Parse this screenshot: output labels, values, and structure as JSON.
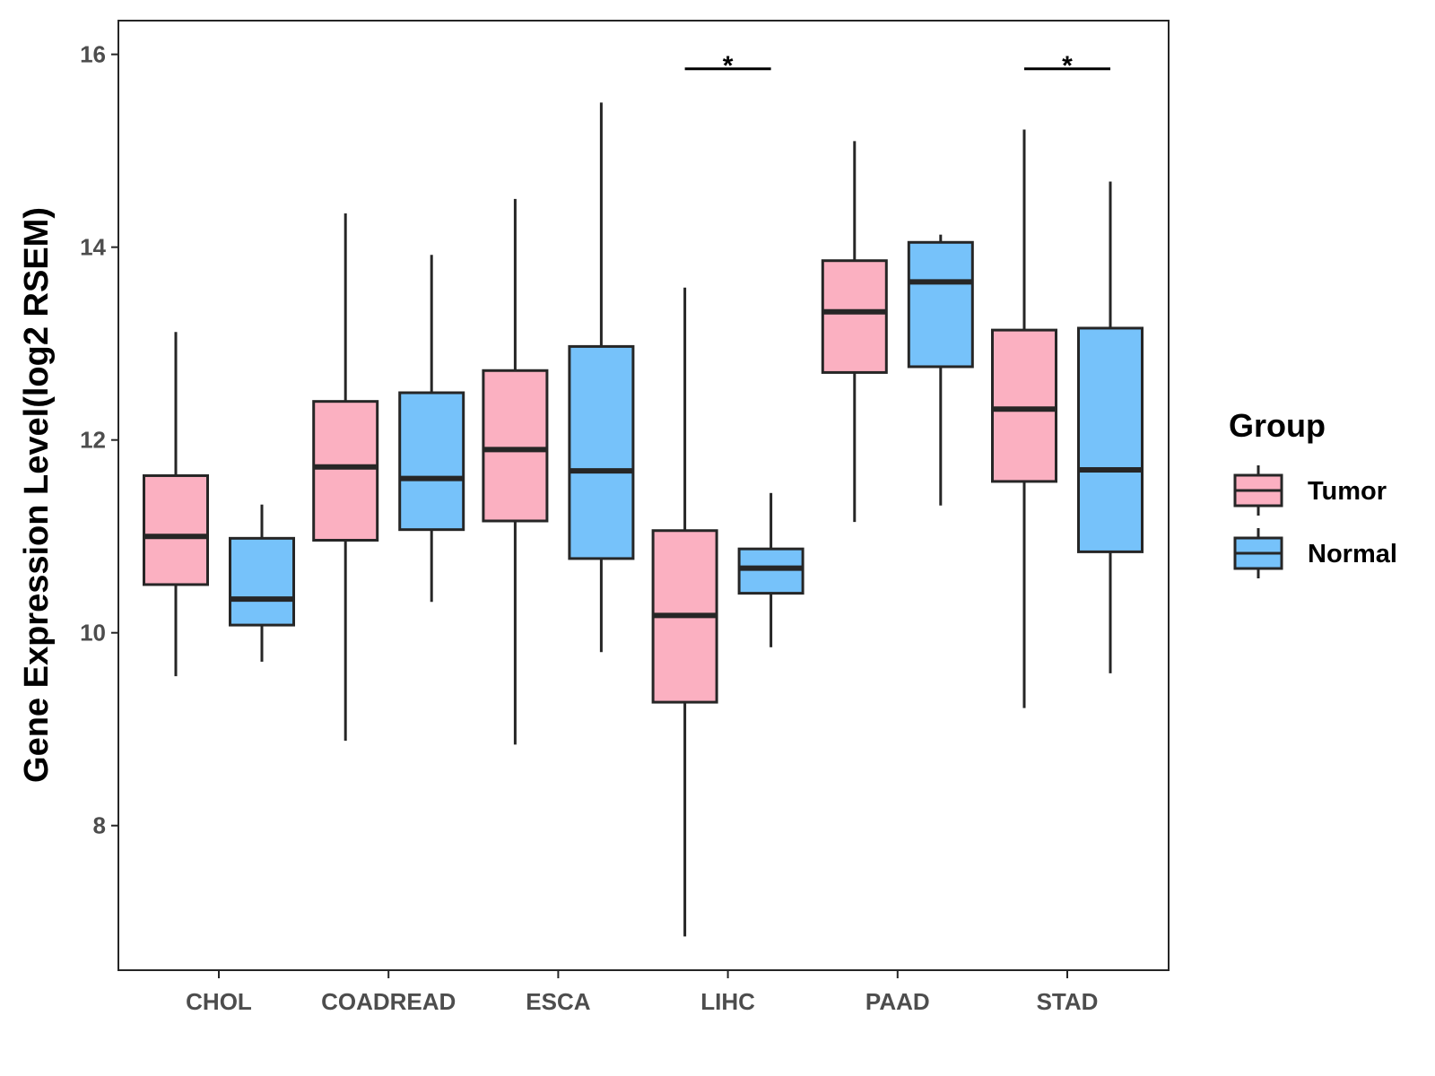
{
  "chart_data": {
    "type": "boxplot",
    "title": "",
    "xlabel": "",
    "ylabel": "Gene Expression Level(log2 RSEM)",
    "ylim": [
      6.5,
      16.35
    ],
    "yticks": [
      8,
      10,
      12,
      14,
      16
    ],
    "categories": [
      "CHOL",
      "COADREAD",
      "ESCA",
      "LIHC",
      "PAAD",
      "STAD"
    ],
    "legend": {
      "title": "Group",
      "position": "right"
    },
    "colors": {
      "Tumor": "#FBB0C1",
      "Normal": "#76C2FA",
      "stroke": "#262626"
    },
    "grid": false,
    "series": [
      {
        "name": "Tumor",
        "boxes": [
          {
            "min": 9.55,
            "q1": 10.5,
            "median": 11.0,
            "q3": 11.63,
            "max": 13.12
          },
          {
            "min": 8.88,
            "q1": 10.96,
            "median": 11.72,
            "q3": 12.4,
            "max": 14.35
          },
          {
            "min": 8.84,
            "q1": 11.16,
            "median": 11.9,
            "q3": 12.72,
            "max": 14.5
          },
          {
            "min": 6.85,
            "q1": 9.28,
            "median": 10.18,
            "q3": 11.06,
            "max": 13.58
          },
          {
            "min": 11.15,
            "q1": 12.7,
            "median": 13.33,
            "q3": 13.86,
            "max": 15.1
          },
          {
            "min": 9.22,
            "q1": 11.57,
            "median": 12.32,
            "q3": 13.14,
            "max": 15.22
          }
        ]
      },
      {
        "name": "Normal",
        "boxes": [
          {
            "min": 9.7,
            "q1": 10.08,
            "median": 10.35,
            "q3": 10.98,
            "max": 11.33
          },
          {
            "min": 10.32,
            "q1": 11.07,
            "median": 11.6,
            "q3": 12.49,
            "max": 13.92
          },
          {
            "min": 9.8,
            "q1": 10.77,
            "median": 11.68,
            "q3": 12.97,
            "max": 15.5
          },
          {
            "min": 9.85,
            "q1": 10.41,
            "median": 10.67,
            "q3": 10.87,
            "max": 11.45
          },
          {
            "min": 11.32,
            "q1": 12.76,
            "median": 13.64,
            "q3": 14.05,
            "max": 14.13
          },
          {
            "min": 9.58,
            "q1": 10.84,
            "median": 11.69,
            "q3": 13.16,
            "max": 14.68
          }
        ]
      }
    ],
    "annotations": [
      {
        "category": "LIHC",
        "label": "*",
        "y": 15.85
      },
      {
        "category": "STAD",
        "label": "*",
        "y": 15.85
      }
    ]
  }
}
